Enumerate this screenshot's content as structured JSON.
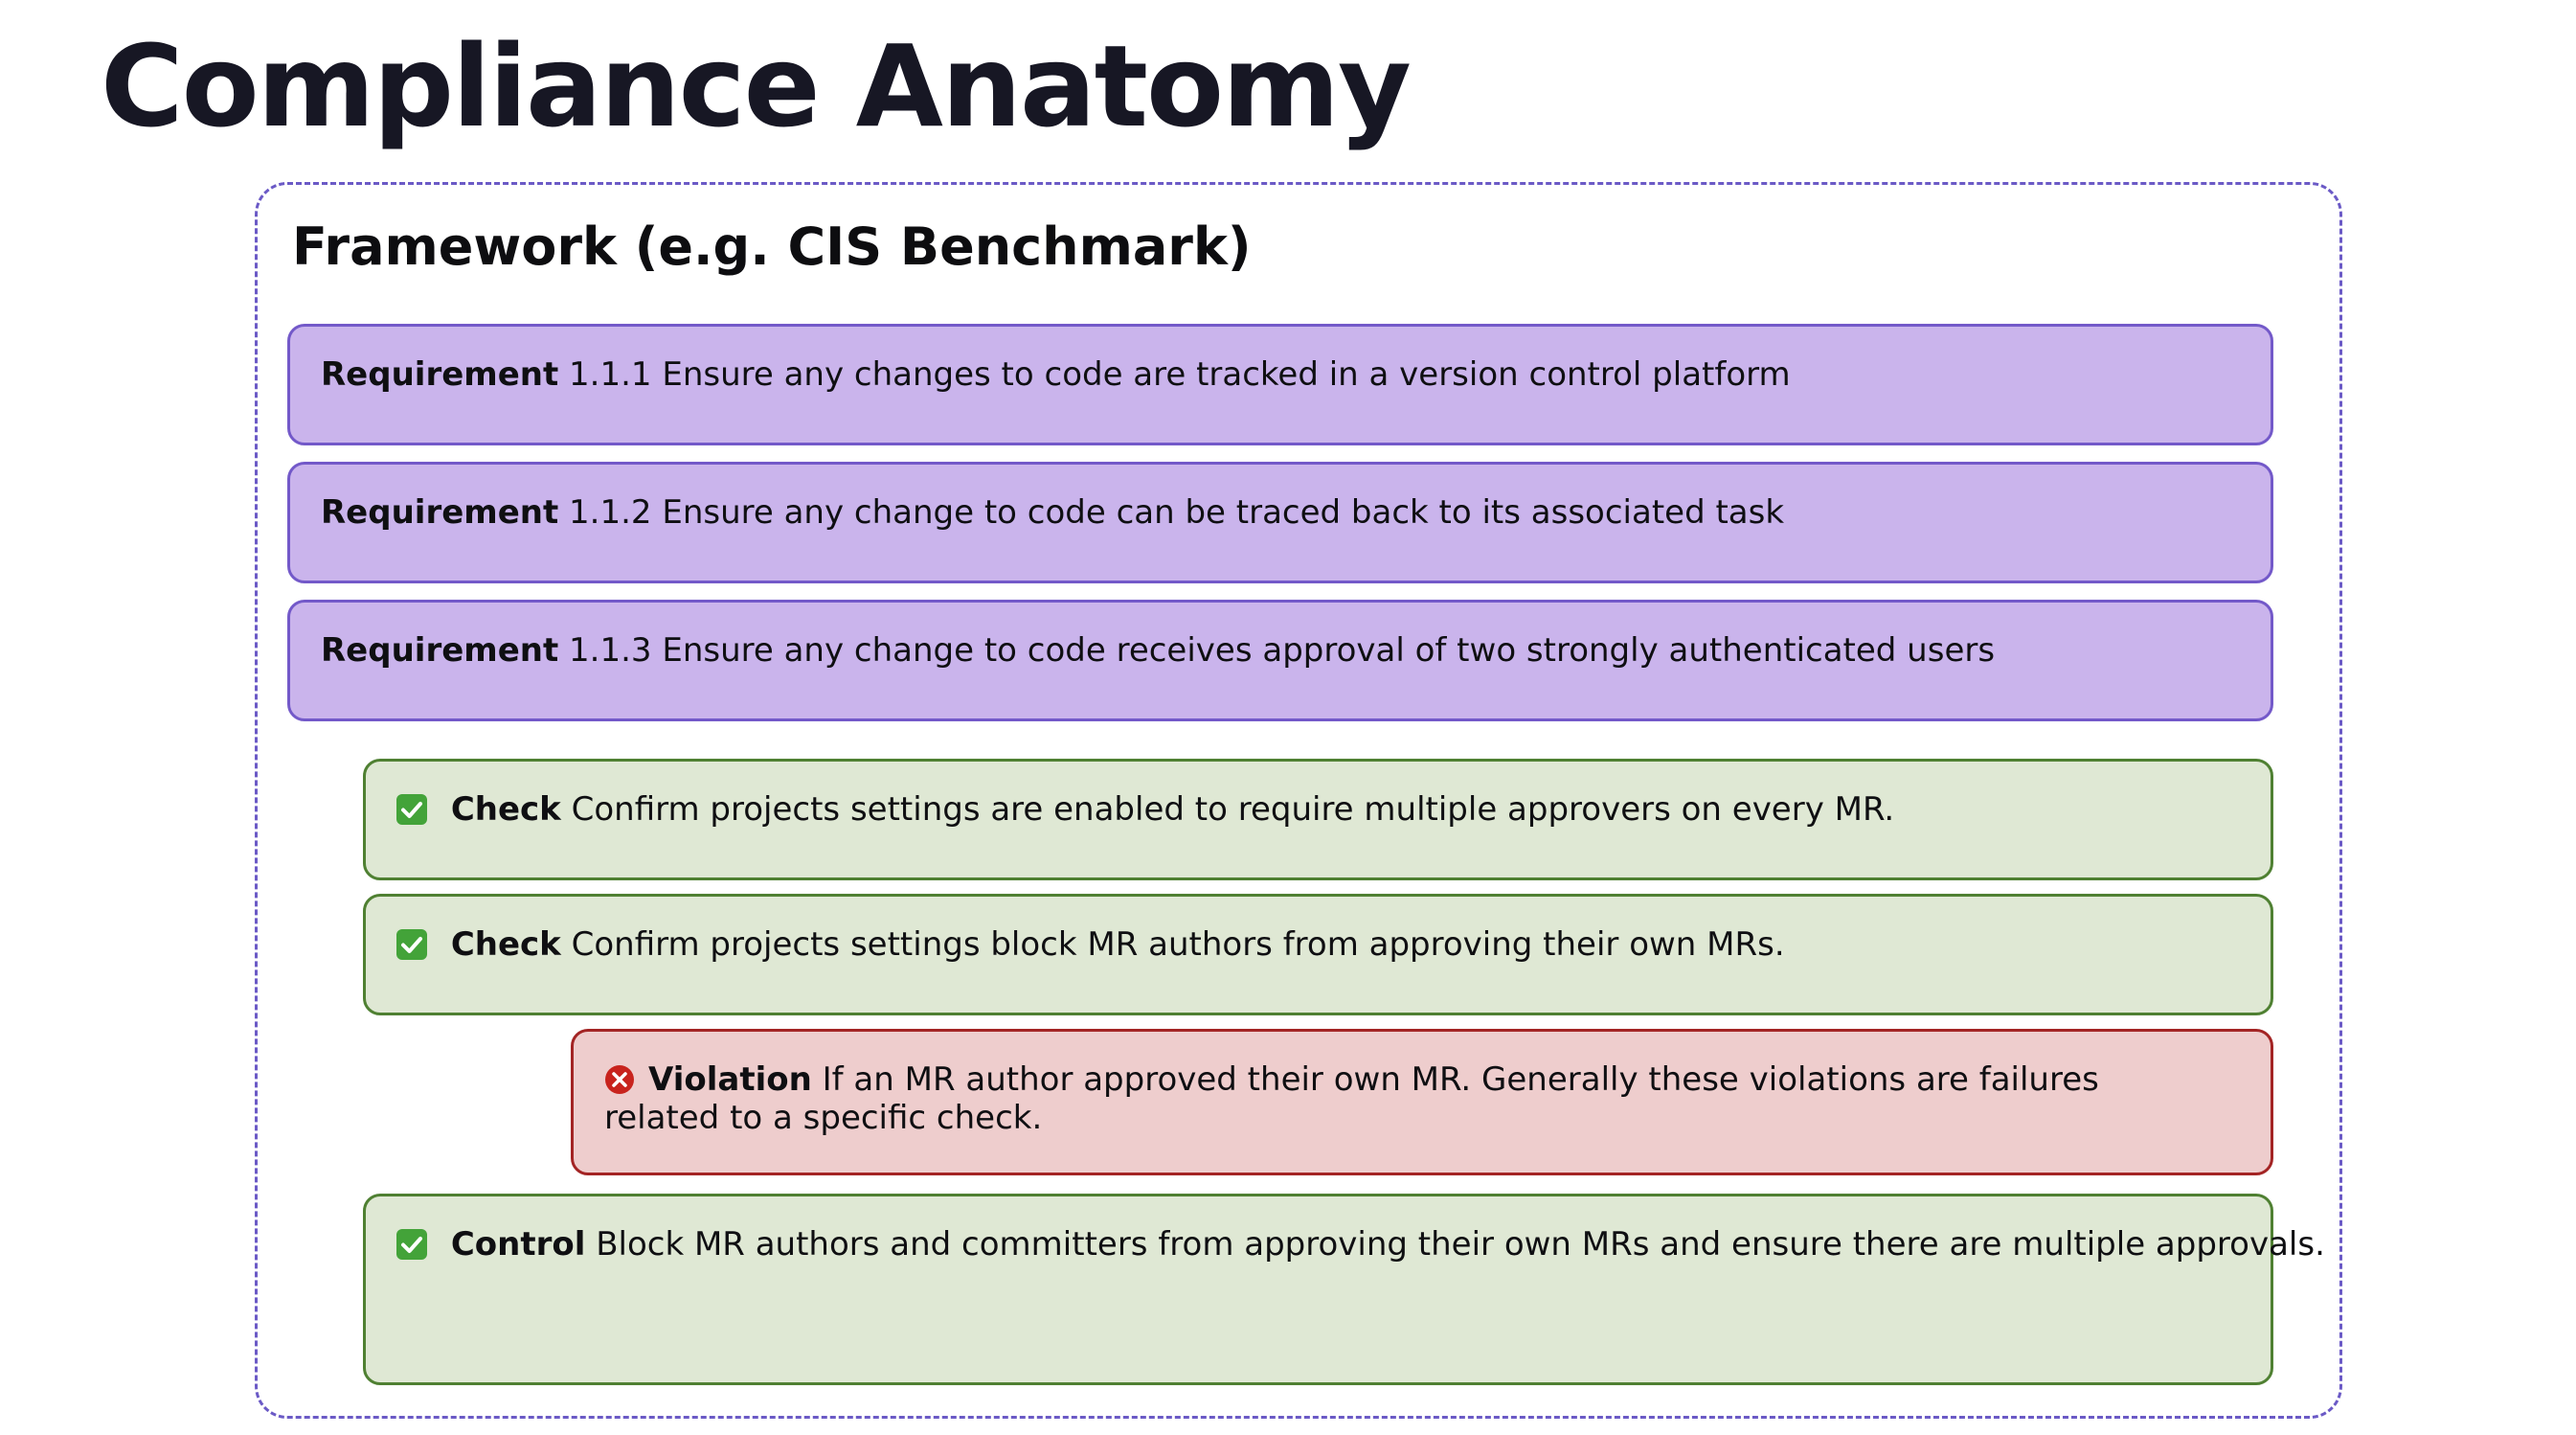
{
  "title": "Compliance Anatomy",
  "framework": {
    "title": "Framework (e.g. CIS Benchmark)"
  },
  "requirements": [
    {
      "keyword": "Requirement",
      "text": "1.1.1 Ensure any changes to code are tracked in a version control platform"
    },
    {
      "keyword": "Requirement",
      "text": "1.1.2 Ensure any change to code can be traced back to its associated task"
    },
    {
      "keyword": "Requirement",
      "text": "1.1.3 Ensure any change to code receives approval of two strongly authenticated users"
    }
  ],
  "checks": [
    {
      "icon": "check-mark-icon",
      "keyword": "Check",
      "text": "Confirm projects settings are enabled to require multiple approvers on every MR."
    },
    {
      "icon": "check-mark-icon",
      "keyword": "Check",
      "text": "Confirm projects settings block MR authors from approving their own MRs."
    }
  ],
  "violation": {
    "icon": "cross-mark-icon",
    "keyword": "Violation",
    "text": "If an MR author approved their own MR. Generally these violations are failures related to a specific check."
  },
  "control": {
    "icon": "check-mark-icon",
    "keyword": "Control",
    "text": "Block MR authors and committers from approving their own MRs and ensure there are multiple approvals."
  },
  "colors": {
    "requirement_fill": "#cab4ec",
    "requirement_border": "#7359c9",
    "check_fill": "#dfe8d4",
    "check_border": "#4f8032",
    "violation_fill": "#eecdcd",
    "violation_border": "#a32424",
    "framework_border": "#6b5ac6"
  }
}
